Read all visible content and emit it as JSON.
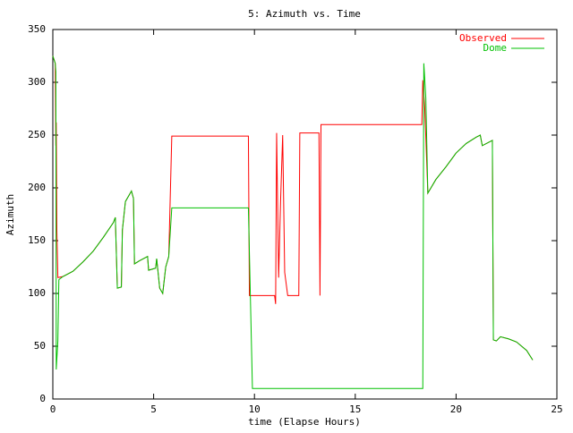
{
  "chart_data": {
    "type": "line",
    "title": "5: Azimuth vs. Time",
    "x_label": "time (Elapse Hours)",
    "y_label": "Azimuth",
    "xlim": [
      0,
      25
    ],
    "xticks": [
      0,
      5,
      10,
      15,
      20,
      25
    ],
    "ylim": [
      0,
      350
    ],
    "yticks": [
      0,
      50,
      100,
      150,
      200,
      250,
      300,
      350
    ],
    "legend": "top-right",
    "series": [
      {
        "name": "Observed",
        "color": "#ff0000",
        "x": [
          0,
          0.05,
          0.12,
          0.15,
          0.17,
          0.2,
          0.25,
          0.5,
          1,
          1.5,
          2,
          2.5,
          3,
          3.1,
          3.2,
          3.4,
          3.45,
          3.6,
          3.9,
          4.0,
          4.05,
          4.3,
          4.7,
          4.75,
          5.1,
          5.15,
          5.3,
          5.45,
          5.6,
          5.75,
          5.9,
          9.7,
          9.75,
          11.0,
          11.05,
          11.1,
          11.2,
          11.3,
          11.4,
          11.5,
          11.65,
          12.2,
          12.25,
          13.2,
          13.25,
          13.3,
          18.3,
          18.35,
          18.45,
          18.6,
          19,
          19.5,
          20,
          20.5,
          21,
          21.2,
          21.3,
          21.8,
          21.85,
          22.0,
          22.2,
          22.6,
          23,
          23.5,
          23.8
        ],
        "values": [
          325,
          322,
          318,
          240,
          262,
          160,
          115,
          116,
          121,
          130,
          140,
          153,
          167,
          172,
          105,
          106,
          160,
          187,
          197,
          190,
          128,
          131,
          135,
          122,
          124,
          133,
          105,
          100,
          125,
          135,
          249,
          249,
          98,
          98,
          90,
          252,
          115,
          190,
          250,
          120,
          98,
          98,
          252,
          252,
          98,
          260,
          260,
          302,
          275,
          195,
          208,
          220,
          233,
          242,
          248,
          250,
          240,
          245,
          56,
          55,
          59,
          57,
          54,
          46,
          37
        ]
      },
      {
        "name": "Dome",
        "color": "#00c000",
        "x": [
          0,
          0.05,
          0.12,
          0.15,
          0.17,
          0.25,
          0.3,
          0.5,
          1,
          1.5,
          2,
          2.5,
          3,
          3.1,
          3.2,
          3.4,
          3.45,
          3.6,
          3.9,
          4.0,
          4.05,
          4.3,
          4.7,
          4.75,
          5.1,
          5.15,
          5.3,
          5.45,
          5.6,
          5.75,
          5.9,
          9.7,
          9.9,
          18.35,
          18.4,
          18.5,
          18.6,
          19,
          19.5,
          20,
          20.5,
          21,
          21.2,
          21.3,
          21.8,
          21.85,
          22.0,
          22.2,
          22.6,
          23,
          23.5,
          23.8
        ],
        "values": [
          325,
          322,
          318,
          310,
          28,
          55,
          113,
          116,
          121,
          130,
          140,
          153,
          167,
          172,
          105,
          106,
          160,
          187,
          197,
          190,
          128,
          131,
          135,
          122,
          124,
          133,
          105,
          100,
          125,
          135,
          181,
          181,
          10,
          10,
          318,
          285,
          195,
          208,
          220,
          233,
          242,
          248,
          250,
          240,
          245,
          56,
          55,
          59,
          57,
          54,
          46,
          37
        ]
      }
    ]
  }
}
